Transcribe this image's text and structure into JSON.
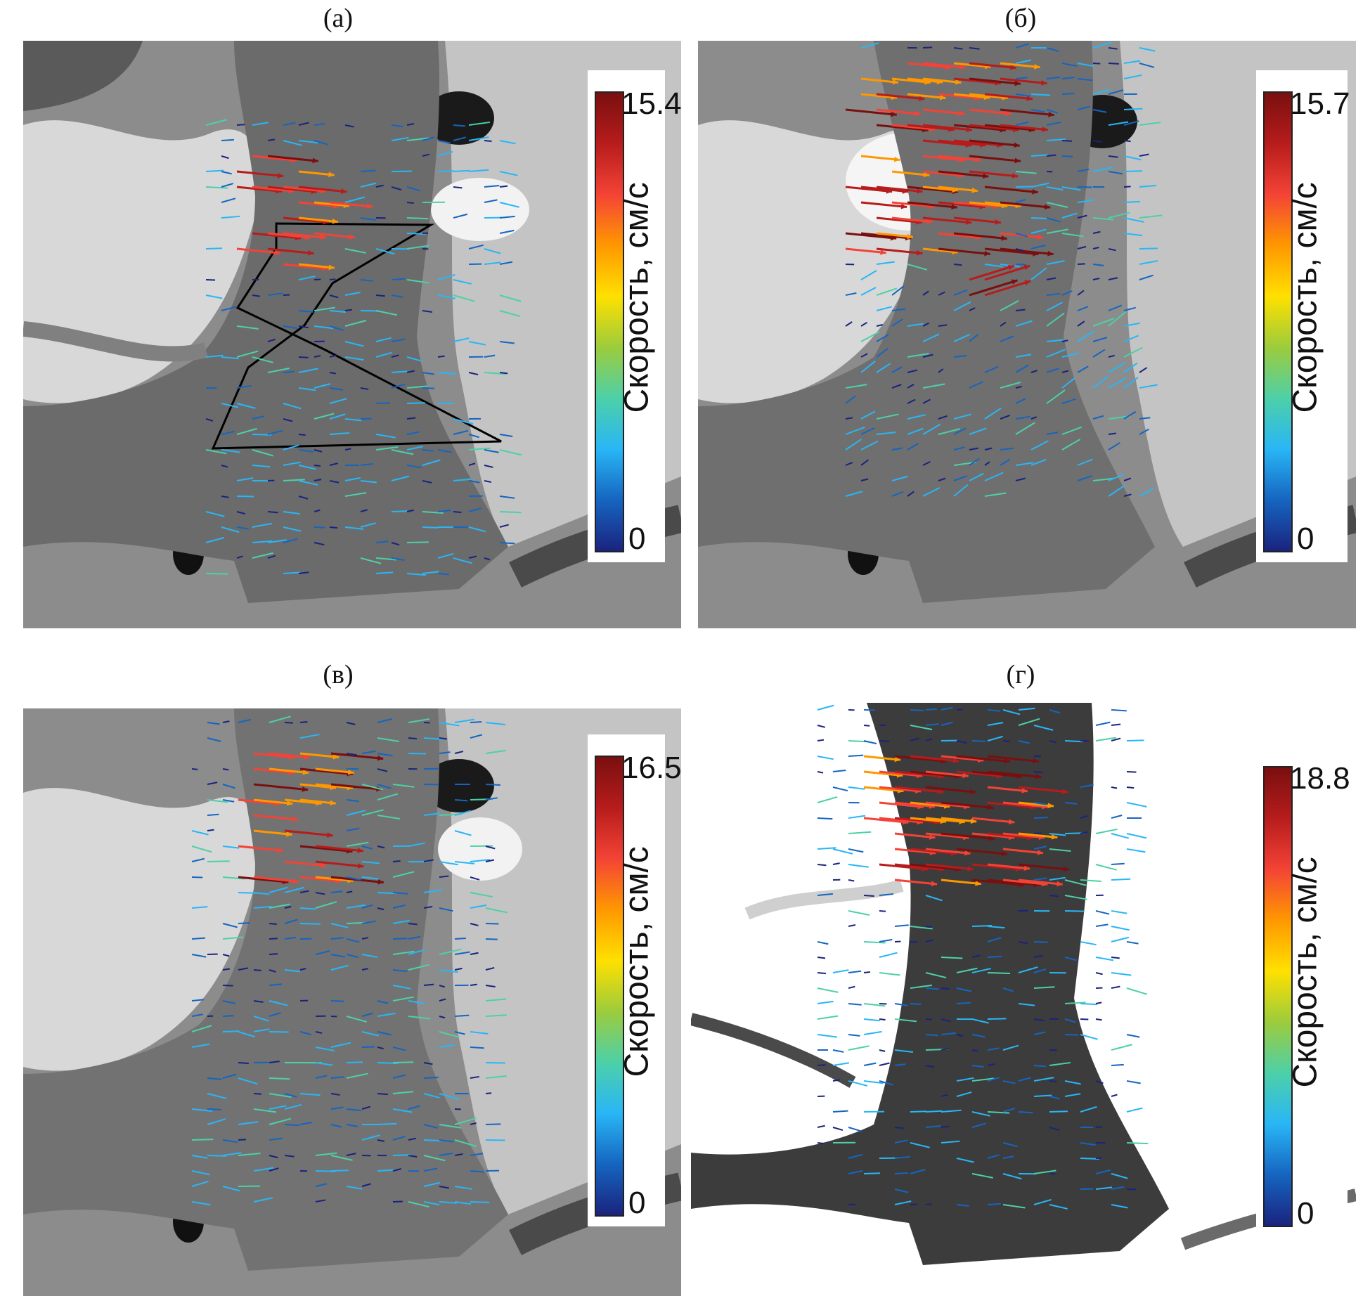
{
  "figure": {
    "panels": [
      {
        "id": "a",
        "label": "(а)",
        "colorbar": {
          "max": "15.4",
          "min": "0",
          "label": "Скорость, см/с"
        }
      },
      {
        "id": "b",
        "label": "(б)",
        "colorbar": {
          "max": "15.7",
          "min": "0",
          "label": "Скорость, см/с"
        }
      },
      {
        "id": "c",
        "label": "(в)",
        "colorbar": {
          "max": "16.5",
          "min": "0",
          "label": "Скорость, см/с"
        }
      },
      {
        "id": "d",
        "label": "(г)",
        "colorbar": {
          "max": "18.8",
          "min": "0",
          "label": "Скорость, см/с"
        }
      }
    ],
    "colormap": [
      "#1a237e",
      "#1565c0",
      "#29b6f6",
      "#4dd0a8",
      "#9ccc3c",
      "#ffe000",
      "#ff9800",
      "#f44336",
      "#b71c1c",
      "#7a0f0f"
    ]
  }
}
